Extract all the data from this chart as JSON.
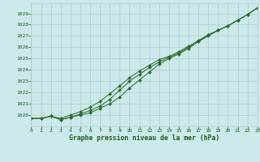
{
  "title": "Graphe pression niveau de la mer (hPa)",
  "x": [
    0,
    1,
    2,
    3,
    4,
    5,
    6,
    7,
    8,
    9,
    10,
    11,
    12,
    13,
    14,
    15,
    16,
    17,
    18,
    19,
    20,
    21,
    22,
    23
  ],
  "line1": [
    1019.7,
    1019.7,
    1019.9,
    1019.7,
    1020.0,
    1020.3,
    1020.7,
    1021.2,
    1021.9,
    1022.6,
    1023.3,
    1023.9,
    1024.4,
    1024.9,
    1025.2,
    1025.6,
    1026.1,
    1026.6,
    1027.1,
    1027.5,
    1027.9,
    1028.4,
    1028.9,
    1029.5
  ],
  "line2": [
    1019.7,
    1019.7,
    1019.9,
    1019.6,
    1019.8,
    1020.1,
    1020.4,
    1020.8,
    1021.4,
    1022.2,
    1023.0,
    1023.6,
    1024.2,
    1024.7,
    1025.1,
    1025.5,
    1026.0,
    1026.5,
    1027.1,
    1027.5,
    1027.9,
    1028.4,
    1028.9,
    1029.5
  ],
  "line3": [
    1019.7,
    1019.7,
    1019.9,
    1019.6,
    1019.8,
    1020.0,
    1020.2,
    1020.6,
    1021.0,
    1021.6,
    1022.4,
    1023.1,
    1023.8,
    1024.5,
    1025.0,
    1025.4,
    1025.9,
    1026.5,
    1027.0,
    1027.5,
    1027.9,
    1028.4,
    1028.9,
    1029.5
  ],
  "line_color": "#2d6a2d",
  "marker_color": "#2d6a2d",
  "bg_color": "#cce8e8",
  "grid_color": "#aacccc",
  "title_color": "#1a5c1a",
  "ylim": [
    1019.0,
    1029.9
  ],
  "yticks": [
    1020,
    1021,
    1022,
    1023,
    1024,
    1025,
    1026,
    1027,
    1028,
    1029
  ],
  "xlim": [
    0,
    23
  ],
  "xticks": [
    0,
    1,
    2,
    3,
    4,
    5,
    6,
    7,
    8,
    9,
    10,
    11,
    12,
    13,
    14,
    15,
    16,
    17,
    18,
    19,
    20,
    21,
    22,
    23
  ]
}
